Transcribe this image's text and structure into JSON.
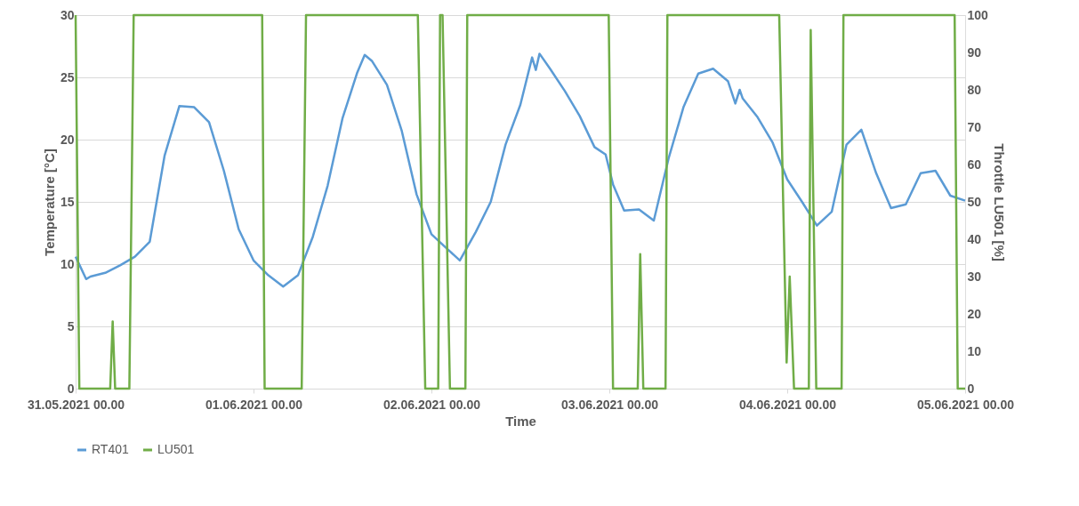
{
  "chart_data": {
    "type": "line",
    "xlabel": "Time",
    "ylabel": "Temperature [°C]",
    "y2label": "Throttle LU501 [%]",
    "xlim": [
      "2021-05-31T00:00",
      "2021-06-05T00:00"
    ],
    "xticks": [
      {
        "value": "2021-05-31T00:00",
        "label": "31.05.2021 00.00"
      },
      {
        "value": "2021-06-01T00:00",
        "label": "01.06.2021 00.00"
      },
      {
        "value": "2021-06-02T00:00",
        "label": "02.06.2021 00.00"
      },
      {
        "value": "2021-06-03T00:00",
        "label": "03.06.2021 00.00"
      },
      {
        "value": "2021-06-04T00:00",
        "label": "04.06.2021 00.00"
      },
      {
        "value": "2021-06-05T00:00",
        "label": "05.06.2021 00.00"
      }
    ],
    "ylim": [
      0,
      30
    ],
    "yticks": [
      0,
      5,
      10,
      15,
      20,
      25,
      30
    ],
    "y2lim": [
      0,
      100
    ],
    "y2ticks": [
      0,
      10,
      20,
      30,
      40,
      50,
      60,
      70,
      80,
      90,
      100
    ],
    "grid": "y",
    "legend": "bottom",
    "marker": "none",
    "line_style": "solid",
    "series": [
      {
        "name": "RT401",
        "color": "#5b9bd5",
        "x": [
          "2021-05-31T00:00",
          "2021-05-31T01:25",
          "2021-05-31T02:00",
          "2021-05-31T04:00",
          "2021-05-31T06:00",
          "2021-05-31T08:00",
          "2021-05-31T10:00",
          "2021-05-31T12:00",
          "2021-05-31T14:00",
          "2021-05-31T16:00",
          "2021-05-31T18:00",
          "2021-05-31T20:00",
          "2021-05-31T22:00",
          "2021-06-01T00:00",
          "2021-06-01T02:00",
          "2021-06-01T04:00",
          "2021-06-01T06:00",
          "2021-06-01T08:00",
          "2021-06-01T10:00",
          "2021-06-01T12:00",
          "2021-06-01T14:00",
          "2021-06-01T15:00",
          "2021-06-01T16:00",
          "2021-06-01T18:00",
          "2021-06-01T20:00",
          "2021-06-01T22:00",
          "2021-06-02T00:00",
          "2021-06-02T02:00",
          "2021-06-02T03:50",
          "2021-06-02T06:00",
          "2021-06-02T08:00",
          "2021-06-02T10:00",
          "2021-06-02T12:00",
          "2021-06-02T13:35",
          "2021-06-02T14:05",
          "2021-06-02T14:35",
          "2021-06-02T16:00",
          "2021-06-02T18:00",
          "2021-06-02T20:00",
          "2021-06-02T22:00",
          "2021-06-02T23:30",
          "2021-06-03T00:30",
          "2021-06-03T02:00",
          "2021-06-03T04:00",
          "2021-06-03T06:00",
          "2021-06-03T08:00",
          "2021-06-03T10:00",
          "2021-06-03T12:00",
          "2021-06-03T14:00",
          "2021-06-03T16:00",
          "2021-06-03T17:00",
          "2021-06-03T17:35",
          "2021-06-03T18:00",
          "2021-06-03T20:00",
          "2021-06-03T22:00",
          "2021-06-04T00:00",
          "2021-06-04T02:00",
          "2021-06-04T04:00",
          "2021-06-04T06:00",
          "2021-06-04T08:00",
          "2021-06-04T10:00",
          "2021-06-04T12:00",
          "2021-06-04T14:00",
          "2021-06-04T16:00",
          "2021-06-04T18:00",
          "2021-06-04T20:00",
          "2021-06-04T22:00",
          "2021-06-05T00:00"
        ],
        "values": [
          10.6,
          8.8,
          9.0,
          9.3,
          9.9,
          10.6,
          11.8,
          18.7,
          22.7,
          22.6,
          21.4,
          17.5,
          12.8,
          10.3,
          9.1,
          8.2,
          9.1,
          12.2,
          16.3,
          21.7,
          25.4,
          26.8,
          26.3,
          24.4,
          20.7,
          15.6,
          12.4,
          11.3,
          10.3,
          12.6,
          15.0,
          19.6,
          22.8,
          26.6,
          25.6,
          26.9,
          25.7,
          23.9,
          21.9,
          19.4,
          18.8,
          16.4,
          14.3,
          14.4,
          13.5,
          18.5,
          22.6,
          25.3,
          25.7,
          24.7,
          22.9,
          24.0,
          23.3,
          21.8,
          19.8,
          16.8,
          15.0,
          13.1,
          14.2,
          19.6,
          20.8,
          17.3,
          14.5,
          14.8,
          17.3,
          17.5,
          15.5,
          15.1
        ]
      },
      {
        "name": "LU501",
        "color": "#70ad47",
        "axis": "y2",
        "x": [
          "2021-05-31T00:00",
          "2021-05-31T00:30",
          "2021-05-31T04:40",
          "2021-05-31T05:00",
          "2021-05-31T05:20",
          "2021-05-31T07:15",
          "2021-05-31T07:50",
          "2021-06-01T01:10",
          "2021-06-01T01:30",
          "2021-06-01T06:30",
          "2021-06-01T07:05",
          "2021-06-01T22:10",
          "2021-06-01T23:10",
          "2021-06-02T00:55",
          "2021-06-02T01:10",
          "2021-06-02T01:30",
          "2021-06-02T02:30",
          "2021-06-02T04:35",
          "2021-06-02T04:50",
          "2021-06-02T23:55",
          "2021-06-03T00:30",
          "2021-06-03T03:50",
          "2021-06-03T04:10",
          "2021-06-03T04:35",
          "2021-06-03T07:35",
          "2021-06-03T07:50",
          "2021-06-03T22:55",
          "2021-06-03T23:55",
          "2021-06-04T00:20",
          "2021-06-04T00:55",
          "2021-06-04T02:55",
          "2021-06-04T03:10",
          "2021-06-04T03:55",
          "2021-06-04T07:20",
          "2021-06-04T07:35",
          "2021-06-04T22:35",
          "2021-06-04T23:00",
          "2021-06-05T00:00"
        ],
        "values": [
          100,
          0,
          0,
          18,
          0,
          0,
          100,
          100,
          0,
          0,
          100,
          100,
          0,
          0,
          100,
          100,
          0,
          0,
          100,
          100,
          0,
          0,
          36,
          0,
          0,
          100,
          100,
          7,
          30,
          0,
          0,
          96,
          0,
          0,
          100,
          100,
          0,
          0
        ]
      }
    ]
  }
}
